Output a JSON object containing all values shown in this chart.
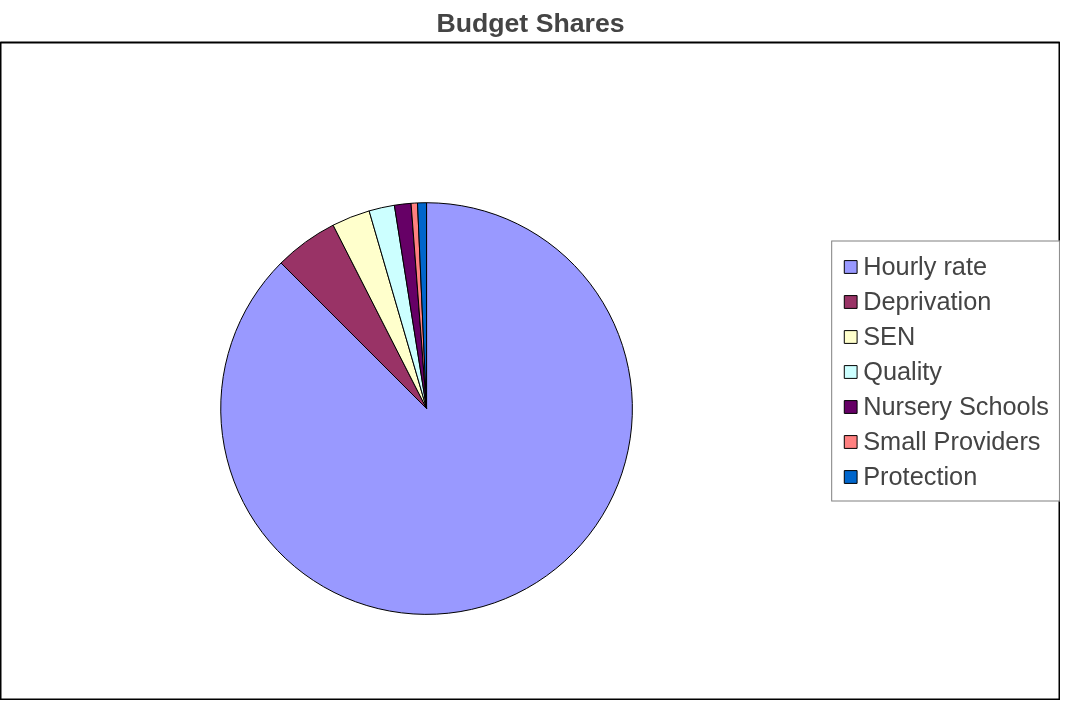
{
  "chart_data": {
    "type": "pie",
    "title": "Budget Shares",
    "categories": [
      "Hourly rate",
      "Deprivation",
      "SEN",
      "Quality",
      "Nursery Schools",
      "Small Providers",
      "Protection"
    ],
    "values": [
      87.5,
      5,
      3,
      2,
      1.3,
      0.5,
      0.7
    ],
    "colors": [
      "#9999ff",
      "#993366",
      "#ffffcc",
      "#ccffff",
      "#660066",
      "#ff8080",
      "#0066cc"
    ],
    "legend": "right"
  }
}
